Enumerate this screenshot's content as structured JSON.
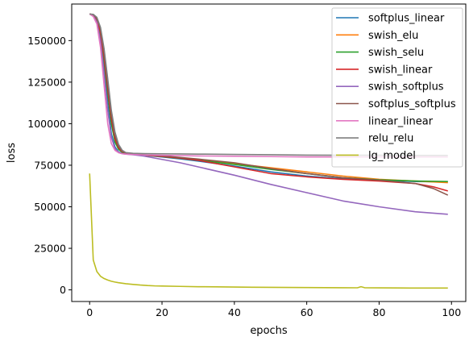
{
  "chart_data": {
    "type": "line",
    "title": "",
    "xlabel": "epochs",
    "ylabel": "loss",
    "xlim": [
      -4.95,
      103.95
    ],
    "ylim": [
      -7000,
      172000
    ],
    "xticks": [
      0,
      20,
      40,
      60,
      80,
      100
    ],
    "xtick_labels": [
      "0",
      "20",
      "40",
      "60",
      "80",
      "100"
    ],
    "yticks": [
      0,
      25000,
      50000,
      75000,
      100000,
      125000,
      150000
    ],
    "ytick_labels": [
      "0",
      "25000",
      "50000",
      "75000",
      "100000",
      "125000",
      "150000"
    ],
    "grid": false,
    "legend": "top-right",
    "series": [
      {
        "name": "softplus_linear",
        "color": "#1f77b4",
        "x": [
          0,
          1,
          2,
          3,
          4,
          5,
          6,
          7,
          8,
          9,
          10,
          12,
          15,
          20,
          25,
          30,
          40,
          50,
          60,
          70,
          80,
          90,
          99
        ],
        "y": [
          166000,
          165000,
          162000,
          152000,
          133000,
          112000,
          94000,
          86000,
          83000,
          82200,
          81800,
          81500,
          81000,
          80000,
          78800,
          77500,
          74500,
          71000,
          68500,
          66800,
          65800,
          65200,
          65000
        ]
      },
      {
        "name": "swish_elu",
        "color": "#ff7f0e",
        "x": [
          0,
          1,
          2,
          3,
          4,
          5,
          6,
          7,
          8,
          9,
          10,
          12,
          15,
          20,
          25,
          30,
          40,
          50,
          60,
          70,
          80,
          90,
          99
        ],
        "y": [
          166000,
          165500,
          163000,
          155000,
          140000,
          120000,
          102000,
          90000,
          85000,
          83000,
          82200,
          81700,
          81200,
          80500,
          79500,
          78500,
          76000,
          73500,
          71000,
          68500,
          66500,
          65500,
          64500
        ]
      },
      {
        "name": "swish_selu",
        "color": "#2ca02c",
        "x": [
          0,
          1,
          2,
          3,
          4,
          5,
          6,
          7,
          8,
          9,
          10,
          12,
          15,
          20,
          25,
          30,
          40,
          50,
          60,
          70,
          80,
          90,
          99
        ],
        "y": [
          166000,
          165500,
          163000,
          154000,
          138000,
          118000,
          100000,
          89000,
          84500,
          82800,
          82000,
          81600,
          81100,
          80200,
          79200,
          78000,
          75500,
          72500,
          70000,
          67500,
          66200,
          65500,
          65200
        ]
      },
      {
        "name": "swish_linear",
        "color": "#d62728",
        "x": [
          0,
          1,
          2,
          3,
          4,
          5,
          6,
          7,
          8,
          9,
          10,
          12,
          15,
          20,
          25,
          30,
          40,
          50,
          60,
          70,
          80,
          90,
          95,
          99
        ],
        "y": [
          166000,
          165500,
          163000,
          155000,
          140000,
          121000,
          103000,
          91000,
          85500,
          83200,
          82300,
          81700,
          81100,
          80300,
          79300,
          78000,
          74000,
          70000,
          68000,
          66500,
          65500,
          64000,
          62000,
          59500
        ]
      },
      {
        "name": "swish_softplus",
        "color": "#9467bd",
        "x": [
          0,
          1,
          2,
          3,
          4,
          5,
          6,
          7,
          8,
          9,
          10,
          12,
          15,
          20,
          25,
          30,
          40,
          50,
          60,
          70,
          80,
          90,
          99
        ],
        "y": [
          166000,
          165000,
          161000,
          150000,
          130000,
          108000,
          92000,
          85000,
          82800,
          82000,
          81700,
          81300,
          80500,
          78500,
          76500,
          74000,
          69000,
          63500,
          58500,
          53500,
          50000,
          47000,
          45500
        ]
      },
      {
        "name": "softplus_softplus",
        "color": "#8c564b",
        "x": [
          0,
          1,
          2,
          3,
          4,
          5,
          6,
          7,
          8,
          9,
          10,
          12,
          15,
          20,
          25,
          30,
          40,
          50,
          60,
          70,
          80,
          90,
          95,
          99
        ],
        "y": [
          166000,
          165500,
          163500,
          157000,
          143000,
          124000,
          106000,
          93000,
          86500,
          83500,
          82500,
          81800,
          81300,
          80600,
          79700,
          78700,
          76500,
          73000,
          70000,
          67500,
          66000,
          64000,
          61000,
          57000
        ]
      },
      {
        "name": "linear_linear",
        "color": "#e377c2",
        "x": [
          0,
          1,
          2,
          3,
          4,
          5,
          6,
          7,
          8,
          9,
          10,
          12,
          15,
          20,
          25,
          30,
          40,
          50,
          60,
          70,
          80,
          90,
          99
        ],
        "y": [
          166000,
          164500,
          160000,
          146000,
          123000,
          100000,
          88000,
          84000,
          82500,
          81900,
          81700,
          81500,
          81200,
          81000,
          80800,
          80600,
          80400,
          80200,
          80000,
          80000,
          80000,
          80000,
          80000
        ]
      },
      {
        "name": "relu_relu",
        "color": "#7f7f7f",
        "x": [
          0,
          1,
          2,
          3,
          4,
          5,
          6,
          7,
          8,
          9,
          10,
          12,
          15,
          20,
          25,
          30,
          40,
          50,
          60,
          70,
          80,
          90,
          99
        ],
        "y": [
          166000,
          165800,
          164000,
          158000,
          145000,
          127000,
          108000,
          95000,
          87500,
          84000,
          82600,
          82200,
          82000,
          81900,
          81800,
          81700,
          81500,
          81300,
          81100,
          81000,
          81000,
          80900,
          80900
        ]
      },
      {
        "name": "lg_model",
        "color": "#bcbd22",
        "x": [
          0,
          1,
          2,
          3,
          4,
          5,
          6,
          7,
          8,
          9,
          10,
          12,
          14,
          16,
          18,
          20,
          25,
          30,
          35,
          40,
          45,
          50,
          55,
          60,
          65,
          70,
          74,
          75,
          76,
          80,
          85,
          90,
          95,
          99
        ],
        "y": [
          70000,
          18000,
          11000,
          8200,
          6800,
          5900,
          5200,
          4700,
          4300,
          4000,
          3700,
          3300,
          2900,
          2600,
          2400,
          2300,
          2100,
          1900,
          1800,
          1700,
          1600,
          1500,
          1450,
          1400,
          1350,
          1300,
          1250,
          1900,
          1300,
          1200,
          1150,
          1100,
          1100,
          1100
        ]
      }
    ]
  }
}
